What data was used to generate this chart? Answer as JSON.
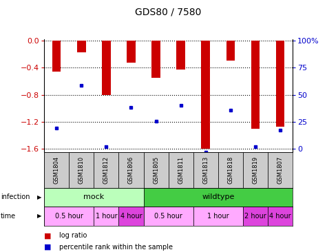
{
  "title": "GDS80 / 7580",
  "samples": [
    "GSM1804",
    "GSM1810",
    "GSM1812",
    "GSM1806",
    "GSM1805",
    "GSM1811",
    "GSM1813",
    "GSM1818",
    "GSM1819",
    "GSM1807"
  ],
  "log_ratios": [
    -0.46,
    -0.18,
    -0.8,
    -0.33,
    -0.55,
    -0.43,
    -1.6,
    -0.3,
    -1.3,
    -1.27
  ],
  "percentile_ranks": [
    22,
    60,
    5,
    40,
    28,
    42,
    0,
    38,
    5,
    20
  ],
  "ylim": [
    -1.65,
    0.02
  ],
  "yticks_left": [
    0,
    -0.4,
    -0.8,
    -1.2,
    -1.6
  ],
  "bar_color": "#cc0000",
  "percentile_color": "#0000cc",
  "infection_groups": [
    {
      "label": "mock",
      "start": 0,
      "end": 3,
      "color": "#bbffbb"
    },
    {
      "label": "wildtype",
      "start": 4,
      "end": 9,
      "color": "#44cc44"
    }
  ],
  "time_groups": [
    {
      "label": "0.5 hour",
      "start": 0,
      "end": 1,
      "color": "#ffaaff"
    },
    {
      "label": "1 hour",
      "start": 2,
      "end": 2,
      "color": "#ffaaff"
    },
    {
      "label": "4 hour",
      "start": 3,
      "end": 3,
      "color": "#dd44dd"
    },
    {
      "label": "0.5 hour",
      "start": 4,
      "end": 5,
      "color": "#ffaaff"
    },
    {
      "label": "1 hour",
      "start": 6,
      "end": 7,
      "color": "#ffaaff"
    },
    {
      "label": "2 hour",
      "start": 8,
      "end": 8,
      "color": "#dd44dd"
    },
    {
      "label": "4 hour",
      "start": 9,
      "end": 9,
      "color": "#dd44dd"
    }
  ],
  "bar_color_red": "#cc0000",
  "percentile_color_blue": "#0000cc",
  "bar_width": 0.35,
  "sample_bg": "#cccccc",
  "title_fontsize": 10,
  "axis_fontsize": 8,
  "label_fontsize": 7
}
